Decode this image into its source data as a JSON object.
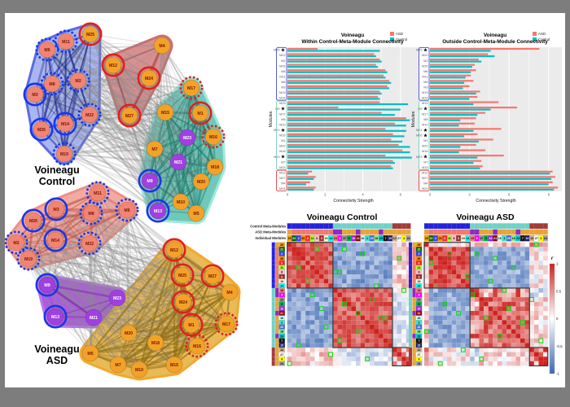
{
  "window": {
    "frame_bg": "#7d7d7d",
    "canvas_bg": "#ffffff"
  },
  "module_order": [
    25,
    22,
    2,
    26,
    6,
    11,
    8,
    3,
    19,
    14,
    13,
    9,
    17,
    5,
    10,
    21,
    16,
    1,
    20,
    18,
    23,
    7,
    15,
    12,
    27,
    4,
    24
  ],
  "modules_palette": {
    "1": [
      "#40E0D0",
      "#000000"
    ],
    "2": [
      "#3344EE",
      "#ffffff"
    ],
    "3": [
      "#A52A2A",
      "#ffffff"
    ],
    "4": [
      "#FFFF00",
      "#000000"
    ],
    "5": [
      "#00B050",
      "#000000"
    ],
    "6": [
      "#FF2222",
      "#ffffff"
    ],
    "7": [
      "#111111",
      "#ffffff"
    ],
    "8": [
      "#FFC0CB",
      "#000000"
    ],
    "9": [
      "#FF00FF",
      "#ffffff"
    ],
    "10": [
      "#A020F0",
      "#ffffff"
    ],
    "11": [
      "#ADFF2F",
      "#000000"
    ],
    "12": [
      "#D2B48C",
      "#000000"
    ],
    "13": [
      "#FA8072",
      "#000000"
    ],
    "14": [
      "#00FFFF",
      "#000000"
    ],
    "15": [
      "#191970",
      "#ffffff"
    ],
    "16": [
      "#CCFFFF",
      "#000000"
    ],
    "17": [
      "#999999",
      "#000000"
    ],
    "18": [
      "#90EE90",
      "#000000"
    ],
    "19": [
      "#FFFFE0",
      "#000000"
    ],
    "20": [
      "#4169E1",
      "#ffffff"
    ],
    "21": [
      "#8B0000",
      "#ffffff"
    ],
    "22": [
      "#006400",
      "#ffffff"
    ],
    "23": [
      "#00CED1",
      "#000000"
    ],
    "24": [
      "#A9A9A9",
      "#000000"
    ],
    "25": [
      "#FFA500",
      "#000000"
    ],
    "26": [
      "#FF8C00",
      "#000000"
    ],
    "27": [
      "#FFFFFF",
      "#000000"
    ]
  },
  "meta_modules": {
    "control": {
      "blue": {
        "color": "#2323DD",
        "members": [
          25,
          22,
          2,
          26,
          6,
          11,
          8,
          3,
          19,
          14
        ]
      },
      "teal": {
        "color": "#6FD1C7",
        "members": [
          13,
          9,
          17,
          5,
          10,
          21,
          16,
          1,
          20,
          18,
          23,
          7,
          15
        ]
      },
      "darkred": {
        "color": "#A33B3B",
        "members": [
          12,
          27,
          4,
          24
        ]
      }
    },
    "asd": {
      "salmon": {
        "color": "#EE7C6B",
        "members": [
          2,
          3,
          6,
          8,
          11,
          14,
          19,
          22,
          26
        ]
      },
      "purple": {
        "color": "#8F2BBF",
        "members": [
          9,
          13,
          21,
          23
        ]
      },
      "gold": {
        "color": "#E8A33D",
        "members": [
          1,
          4,
          5,
          7,
          10,
          12,
          15,
          16,
          17,
          18,
          20,
          24,
          25,
          27
        ]
      }
    }
  },
  "node_style": {
    "fills": {
      "salmon": "#F08573",
      "purple": "#A040E0",
      "gold": "#F2A229"
    },
    "text": {
      "salmon": "#7A1500",
      "purple": "#FFFFFF",
      "gold": "#7A1500"
    },
    "fill_groups": {
      "salmon": [
        2,
        3,
        6,
        8,
        11,
        14,
        19,
        22,
        26
      ],
      "purple": [
        9,
        13,
        21,
        23
      ]
    },
    "rings": {
      "blue-solid": [
        3,
        26,
        14,
        9,
        13
      ],
      "blue-dotted": [
        11,
        6,
        8,
        2,
        22,
        19
      ],
      "red-solid": [
        25,
        12,
        24,
        27,
        1
      ],
      "red-dotted": [
        17,
        16
      ]
    },
    "ring_colors": {
      "blue": "#1A35E8",
      "red": "#E02020"
    }
  },
  "networks": {
    "control": {
      "label_line1": "Voineagu",
      "label_line2": "Control",
      "seed": 21,
      "nodes": [
        [
          25,
          105,
          26
        ],
        [
          11,
          75,
          35
        ],
        [
          6,
          52,
          45
        ],
        [
          2,
          90,
          83
        ],
        [
          8,
          58,
          87
        ],
        [
          3,
          37,
          100
        ],
        [
          22,
          104,
          125
        ],
        [
          26,
          45,
          143
        ],
        [
          14,
          74,
          136
        ],
        [
          19,
          73,
          173
        ],
        [
          12,
          133,
          64
        ],
        [
          4,
          193,
          40
        ],
        [
          24,
          177,
          80
        ],
        [
          27,
          153,
          126
        ],
        [
          17,
          229,
          92
        ],
        [
          15,
          197,
          122
        ],
        [
          1,
          240,
          123
        ],
        [
          23,
          224,
          153
        ],
        [
          16,
          256,
          152
        ],
        [
          7,
          184,
          167
        ],
        [
          21,
          213,
          183
        ],
        [
          18,
          258,
          189
        ],
        [
          9,
          178,
          206
        ],
        [
          20,
          241,
          207
        ],
        [
          10,
          216,
          232
        ],
        [
          13,
          188,
          243
        ],
        [
          5,
          235,
          246
        ]
      ],
      "hulls": [
        {
          "name": "control-blue-hull",
          "fill": "#AAB6F2",
          "stroke": "#5B6BE0",
          "edge": "#1B2E8A",
          "members": [
            25,
            11,
            6,
            2,
            8,
            3,
            22,
            26,
            14,
            19
          ]
        },
        {
          "name": "control-darkred-hull",
          "fill": "#D99090",
          "stroke": "#C97070",
          "edge": "#8F3535",
          "members": [
            12,
            4,
            24,
            27
          ]
        },
        {
          "name": "control-teal-hull",
          "fill": "#6FC9BA",
          "stroke": "#9FE8DC",
          "edge": "#23796C",
          "members": [
            17,
            15,
            1,
            23,
            16,
            7,
            21,
            18,
            9,
            20,
            10,
            13,
            5
          ]
        }
      ]
    },
    "asd": {
      "label_line1": "Voineagu",
      "label_line2": "ASD",
      "seed": 42,
      "nodes": [
        [
          11,
          114,
          221
        ],
        [
          6,
          150,
          242
        ],
        [
          3,
          63,
          241
        ],
        [
          8,
          106,
          246
        ],
        [
          26,
          35,
          255
        ],
        [
          14,
          62,
          279
        ],
        [
          2,
          14,
          282
        ],
        [
          22,
          104,
          283
        ],
        [
          19,
          29,
          302
        ],
        [
          9,
          52,
          334
        ],
        [
          13,
          62,
          373
        ],
        [
          23,
          138,
          350
        ],
        [
          21,
          109,
          374
        ],
        [
          12,
          208,
          291
        ],
        [
          25,
          218,
          322
        ],
        [
          27,
          255,
          323
        ],
        [
          4,
          276,
          343
        ],
        [
          24,
          219,
          355
        ],
        [
          1,
          229,
          383
        ],
        [
          17,
          272,
          382
        ],
        [
          20,
          152,
          393
        ],
        [
          18,
          185,
          405
        ],
        [
          16,
          236,
          409
        ],
        [
          5,
          105,
          418
        ],
        [
          15,
          208,
          432
        ],
        [
          7,
          139,
          432
        ],
        [
          10,
          165,
          438
        ]
      ],
      "hulls": [
        {
          "name": "asd-salmon-hull",
          "fill": "#F2ABA3",
          "stroke": "#EE9086",
          "edge": "#C05548",
          "members": [
            11,
            6,
            3,
            8,
            26,
            14,
            2,
            22,
            19
          ]
        },
        {
          "name": "asd-purple-hull",
          "fill": "#AD5BE0",
          "stroke": "#B879E8",
          "edge": "#7D1FA8",
          "members": [
            9,
            13,
            23,
            21
          ]
        },
        {
          "name": "asd-gold-hull",
          "fill": "#E9BA55",
          "stroke": "#F2A82E",
          "edge": "#8A6A15",
          "members": [
            12,
            25,
            27,
            4,
            24,
            1,
            17,
            20,
            18,
            16,
            5,
            15,
            7,
            10
          ]
        }
      ]
    }
  },
  "star_char": "★",
  "chart_data": [
    {
      "type": "bar",
      "orientation": "horizontal",
      "title_line1": "Voineagu",
      "title_line2": "Within Control-Meta-Module Connectivity",
      "xlabel": "Connectivity Strength",
      "ylabel": "Modules",
      "xticks": [
        0,
        2,
        4,
        6
      ],
      "xmax": 7,
      "legend": [
        {
          "label": "ASD",
          "color": "#F8766D"
        },
        {
          "label": "Control",
          "color": "#00BFC4"
        }
      ],
      "groups": [
        {
          "size": 10,
          "color": "#5B5BD6"
        },
        {
          "size": 13,
          "color": "#7FD4C4"
        },
        {
          "size": 4,
          "color": "#E05050"
        }
      ],
      "rows": [
        [
          "M25",
          1.6,
          4.9,
          1
        ],
        [
          "M22",
          4.6,
          4.7,
          0
        ],
        [
          "M2",
          4.9,
          5.0,
          0
        ],
        [
          "M26",
          4.7,
          4.8,
          0
        ],
        [
          "M6",
          5.2,
          5.3,
          0
        ],
        [
          "M11",
          5.1,
          5.2,
          0
        ],
        [
          "M8",
          5.4,
          5.5,
          0
        ],
        [
          "M3",
          5.3,
          5.4,
          0
        ],
        [
          "M19",
          4.9,
          5.0,
          0
        ],
        [
          "M14",
          4.8,
          4.9,
          0
        ],
        [
          "M13",
          4.9,
          6.4,
          0
        ],
        [
          "M9",
          2.7,
          6.0,
          1
        ],
        [
          "M17",
          5.0,
          5.7,
          0
        ],
        [
          "M5",
          6.3,
          6.5,
          0
        ],
        [
          "M10",
          5.7,
          6.3,
          0
        ],
        [
          "M21",
          5.2,
          6.3,
          1
        ],
        [
          "M16",
          5.6,
          6.2,
          0
        ],
        [
          "M1",
          5.5,
          6.1,
          0
        ],
        [
          "M20",
          5.9,
          6.5,
          0
        ],
        [
          "M18",
          6.1,
          6.5,
          0
        ],
        [
          "M23",
          5.2,
          6.6,
          1
        ],
        [
          "M7",
          5.6,
          5.7,
          0
        ],
        [
          "M15",
          5.5,
          5.6,
          0
        ],
        [
          "M12",
          1.3,
          1.1,
          0
        ],
        [
          "M27",
          1.5,
          1.4,
          0
        ],
        [
          "M4",
          1.2,
          1.0,
          0
        ],
        [
          "M24",
          1.5,
          1.4,
          0
        ]
      ]
    },
    {
      "type": "bar",
      "orientation": "horizontal",
      "title_line1": "Voineagu",
      "title_line2": "Outside Control-Meta-Module Connectivity",
      "xlabel": "Connectivity Strength",
      "ylabel": "Modules",
      "xticks": [
        0,
        3,
        6,
        9
      ],
      "xmax": 10,
      "legend": [
        {
          "label": "ASD",
          "color": "#F8766D"
        },
        {
          "label": "Control",
          "color": "#00BFC4"
        }
      ],
      "groups": [
        {
          "size": 10,
          "color": "#5B5BD6"
        },
        {
          "size": 13,
          "color": "#7FD4C4"
        },
        {
          "size": 4,
          "color": "#E05050"
        }
      ],
      "rows": [
        [
          "M25",
          8.3,
          4.6,
          1
        ],
        [
          "M22",
          4.4,
          4.9,
          0
        ],
        [
          "M2",
          3.7,
          3.9,
          0
        ],
        [
          "M26",
          3.4,
          3.2,
          0
        ],
        [
          "M6",
          3.5,
          3.1,
          0
        ],
        [
          "M11",
          3.1,
          2.7,
          0
        ],
        [
          "M8",
          3.3,
          2.6,
          0
        ],
        [
          "M3",
          3.0,
          2.5,
          0
        ],
        [
          "M19",
          3.8,
          3.5,
          0
        ],
        [
          "M14",
          3.6,
          3.0,
          0
        ],
        [
          "M13",
          5.2,
          3.3,
          0
        ],
        [
          "M9",
          6.6,
          4.6,
          1
        ],
        [
          "M17",
          4.2,
          3.6,
          0
        ],
        [
          "M5",
          3.5,
          2.3,
          0
        ],
        [
          "M10",
          3.4,
          2.2,
          0
        ],
        [
          "M21",
          5.4,
          3.3,
          1
        ],
        [
          "M16",
          3.6,
          2.6,
          1
        ],
        [
          "M1",
          4.8,
          3.7,
          0
        ],
        [
          "M20",
          3.5,
          2.3,
          0
        ],
        [
          "M18",
          4.2,
          2.2,
          0
        ],
        [
          "M23",
          5.6,
          3.6,
          1
        ],
        [
          "M7",
          3.9,
          3.3,
          0
        ],
        [
          "M15",
          4.0,
          3.8,
          0
        ],
        [
          "M12",
          9.3,
          9.1,
          0
        ],
        [
          "M27",
          9.5,
          9.2,
          0
        ],
        [
          "M4",
          9.3,
          9.0,
          0
        ],
        [
          "M24",
          9.7,
          9.4,
          0
        ]
      ]
    },
    {
      "type": "heatmap",
      "title": "Voineagu Control",
      "kind": "control",
      "seed": 3,
      "row_labels": [
        "Control Meta-Modules",
        "ASD Meta-Modules",
        "Individual Modules"
      ],
      "value_range": [
        -1,
        1
      ],
      "blocks": [
        [
          0,
          10
        ],
        [
          10,
          23
        ],
        [
          23,
          27
        ]
      ],
      "block_means_note": "within blue 0.72, within teal 0.66, checker darkred block, blue-teal -0.55, blue-darkred 0.18, teal-darkred -0.12 (values estimated from colors)",
      "green_cells": [
        [
          1,
          6
        ],
        [
          1,
          12
        ],
        [
          2,
          16
        ],
        [
          3,
          24
        ],
        [
          5,
          2
        ],
        [
          6,
          10
        ],
        [
          6,
          11
        ],
        [
          8,
          4
        ],
        [
          9,
          19
        ],
        [
          10,
          25
        ],
        [
          11,
          5
        ],
        [
          12,
          18
        ],
        [
          13,
          12
        ],
        [
          14,
          7
        ],
        [
          15,
          15
        ],
        [
          16,
          20
        ],
        [
          16,
          21
        ],
        [
          18,
          8
        ],
        [
          19,
          15
        ],
        [
          21,
          11
        ],
        [
          22,
          2
        ],
        [
          24,
          9
        ],
        [
          25,
          17
        ],
        [
          26,
          0
        ]
      ]
    },
    {
      "type": "heatmap",
      "title": "Voineagu ASD",
      "kind": "asd",
      "seed": 5,
      "row_labels": [
        "Control Meta-Modules",
        "ASD Meta-Modules",
        "Individual Modules"
      ],
      "value_range": [
        -1,
        1
      ],
      "blocks": [
        [
          0,
          10
        ],
        [
          10,
          23
        ],
        [
          23,
          27
        ]
      ],
      "block_means_note": "M25 row attenuated, M9/M13 rows pale except with purple partners (estimated)",
      "green_cells": [
        [
          0,
          24
        ],
        [
          2,
          5
        ],
        [
          2,
          11
        ],
        [
          3,
          15
        ],
        [
          4,
          1
        ],
        [
          5,
          19
        ],
        [
          7,
          9
        ],
        [
          8,
          14
        ],
        [
          9,
          2
        ],
        [
          10,
          17
        ],
        [
          11,
          10
        ],
        [
          12,
          23
        ],
        [
          13,
          4
        ],
        [
          14,
          18
        ],
        [
          15,
          7
        ],
        [
          16,
          13
        ],
        [
          17,
          21
        ],
        [
          19,
          0
        ],
        [
          20,
          16
        ],
        [
          21,
          25
        ],
        [
          23,
          8
        ],
        [
          25,
          12
        ],
        [
          26,
          3
        ]
      ]
    }
  ],
  "colorbar": {
    "title": "r",
    "ticks": [
      "1",
      "0.5",
      "0",
      "-0.5",
      "-1"
    ],
    "top_color": "#CD231F",
    "mid_color": "#FFFFFF",
    "bottom_color": "#3B67B4"
  }
}
